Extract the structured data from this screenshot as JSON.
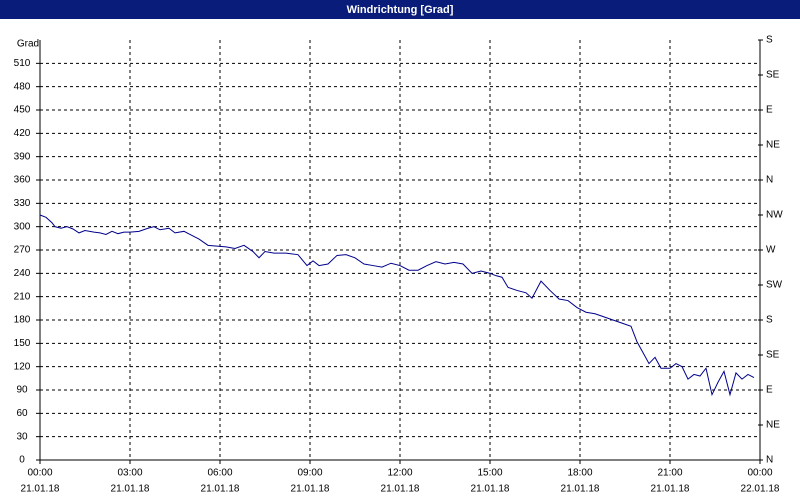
{
  "chart_data": {
    "type": "line",
    "title": "Windrichtung [Grad]",
    "ylabel": "Grad",
    "xlim": [
      0,
      24
    ],
    "ylim": [
      0,
      540
    ],
    "y2lim": [
      0,
      540
    ],
    "grid": true,
    "xticks": [
      {
        "value": 0,
        "label": "00:00",
        "date": "21.01.18"
      },
      {
        "value": 3,
        "label": "03:00",
        "date": "21.01.18"
      },
      {
        "value": 6,
        "label": "06:00",
        "date": "21.01.18"
      },
      {
        "value": 9,
        "label": "09:00",
        "date": "21.01.18"
      },
      {
        "value": 12,
        "label": "12:00",
        "date": "21.01.18"
      },
      {
        "value": 15,
        "label": "15:00",
        "date": "21.01.18"
      },
      {
        "value": 18,
        "label": "18:00",
        "date": "21.01.18"
      },
      {
        "value": 21,
        "label": "21:00",
        "date": "21.01.18"
      },
      {
        "value": 24,
        "label": "00:00",
        "date": "22.01.18"
      }
    ],
    "yticks": [
      0,
      30,
      60,
      90,
      120,
      150,
      180,
      210,
      240,
      270,
      300,
      330,
      360,
      390,
      420,
      450,
      480,
      510
    ],
    "y2ticks": [
      {
        "value": 0,
        "label": "N"
      },
      {
        "value": 45,
        "label": "NE"
      },
      {
        "value": 90,
        "label": "E"
      },
      {
        "value": 135,
        "label": "SE"
      },
      {
        "value": 180,
        "label": "S"
      },
      {
        "value": 225,
        "label": "SW"
      },
      {
        "value": 270,
        "label": "W"
      },
      {
        "value": 315,
        "label": "NW"
      },
      {
        "value": 360,
        "label": "N"
      },
      {
        "value": 405,
        "label": "NE"
      },
      {
        "value": 450,
        "label": "E"
      },
      {
        "value": 495,
        "label": "SE"
      },
      {
        "value": 540,
        "label": "S"
      }
    ],
    "x": [
      0,
      0.2,
      0.4,
      0.5,
      0.7,
      0.9,
      1.1,
      1.3,
      1.5,
      1.8,
      2.0,
      2.2,
      2.4,
      2.6,
      2.8,
      3.0,
      3.3,
      3.6,
      3.8,
      4.0,
      4.3,
      4.5,
      4.8,
      5.0,
      5.3,
      5.6,
      5.9,
      6.2,
      6.5,
      6.8,
      7.1,
      7.3,
      7.5,
      7.8,
      8.2,
      8.6,
      8.9,
      9.1,
      9.3,
      9.6,
      9.9,
      10.2,
      10.5,
      10.8,
      11.1,
      11.4,
      11.7,
      12.0,
      12.3,
      12.6,
      12.9,
      13.2,
      13.5,
      13.8,
      14.1,
      14.4,
      14.7,
      15.0,
      15.2,
      15.4,
      15.6,
      15.9,
      16.2,
      16.4,
      16.7,
      17.0,
      17.3,
      17.6,
      17.9,
      18.2,
      18.5,
      18.8,
      19.1,
      19.4,
      19.7,
      19.9,
      20.1,
      20.3,
      20.5,
      20.7,
      21.0,
      21.2,
      21.4,
      21.6,
      21.8,
      22.0,
      22.2,
      22.4,
      22.6,
      22.8,
      23.0,
      23.2,
      23.4,
      23.6,
      23.8
    ],
    "series": [
      {
        "color": "#00008b",
        "values": [
          315,
          312,
          305,
          300,
          298,
          300,
          297,
          292,
          295,
          293,
          292,
          290,
          294,
          291,
          293,
          293,
          294,
          298,
          300,
          296,
          298,
          292,
          294,
          290,
          284,
          276,
          275,
          274,
          272,
          276,
          268,
          260,
          268,
          266,
          266,
          264,
          250,
          256,
          250,
          252,
          263,
          264,
          260,
          252,
          250,
          248,
          253,
          250,
          244,
          244,
          250,
          255,
          252,
          254,
          252,
          240,
          243,
          240,
          237,
          235,
          222,
          218,
          215,
          208,
          230,
          218,
          207,
          205,
          196,
          190,
          188,
          184,
          180,
          176,
          172,
          152,
          138,
          124,
          132,
          118,
          118,
          124,
          120,
          104,
          110,
          108,
          118,
          84,
          100,
          114,
          84,
          112,
          104,
          110,
          106
        ]
      }
    ]
  }
}
